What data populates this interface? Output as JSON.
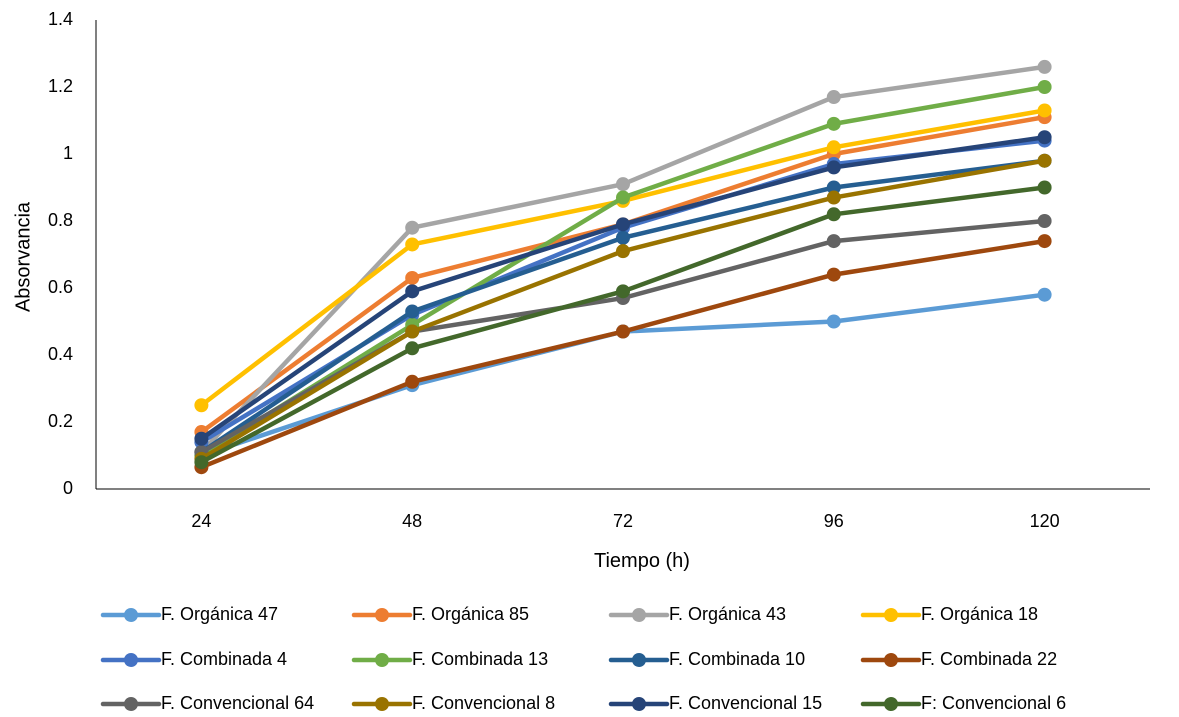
{
  "chart_data": {
    "type": "line",
    "title": "",
    "xlabel": "Tiempo (h)",
    "ylabel": "Absorvancia",
    "categories": [
      "24",
      "48",
      "72",
      "96",
      "120"
    ],
    "ylim": [
      0,
      1.4
    ],
    "yticks": [
      "0",
      "0.2",
      "0.4",
      "0.6",
      "0.8",
      "1",
      "1.2",
      "1.4"
    ],
    "grid": false,
    "legend_position": "bottom",
    "series": [
      {
        "name": "F. Orgánica 47",
        "color": "#5B9BD5",
        "values": [
          0.1,
          0.31,
          0.47,
          0.5,
          0.58
        ]
      },
      {
        "name": "F. Orgánica 85",
        "color": "#ED7D31",
        "values": [
          0.17,
          0.63,
          0.79,
          1.0,
          1.11
        ]
      },
      {
        "name": "F. Orgánica 43",
        "color": "#A5A5A5",
        "values": [
          0.11,
          0.78,
          0.91,
          1.17,
          1.26
        ]
      },
      {
        "name": "F. Orgánica 18",
        "color": "#FFC000",
        "values": [
          0.25,
          0.73,
          0.86,
          1.02,
          1.13
        ]
      },
      {
        "name": "F. Combinada  4",
        "color": "#4472C4",
        "values": [
          0.14,
          0.52,
          0.78,
          0.97,
          1.04
        ]
      },
      {
        "name": "F. Combinada 13",
        "color": "#70AD47",
        "values": [
          0.1,
          0.49,
          0.87,
          1.09,
          1.2
        ]
      },
      {
        "name": "F. Combinada 10",
        "color": "#255E91",
        "values": [
          0.11,
          0.53,
          0.75,
          0.9,
          0.98
        ]
      },
      {
        "name": "F. Combinada 22",
        "color": "#9E480E",
        "values": [
          0.065,
          0.32,
          0.47,
          0.64,
          0.74
        ]
      },
      {
        "name": "F. Convencional 64",
        "color": "#636363",
        "values": [
          0.11,
          0.47,
          0.57,
          0.74,
          0.8
        ]
      },
      {
        "name": "F. Convencional 8",
        "color": "#997300",
        "values": [
          0.09,
          0.47,
          0.71,
          0.87,
          0.98
        ]
      },
      {
        "name": "F. Convencional 15",
        "color": "#264478",
        "values": [
          0.15,
          0.59,
          0.79,
          0.96,
          1.05
        ]
      },
      {
        "name": "F: Convencional 6",
        "color": "#43682B",
        "values": [
          0.08,
          0.42,
          0.59,
          0.82,
          0.9
        ]
      }
    ]
  }
}
